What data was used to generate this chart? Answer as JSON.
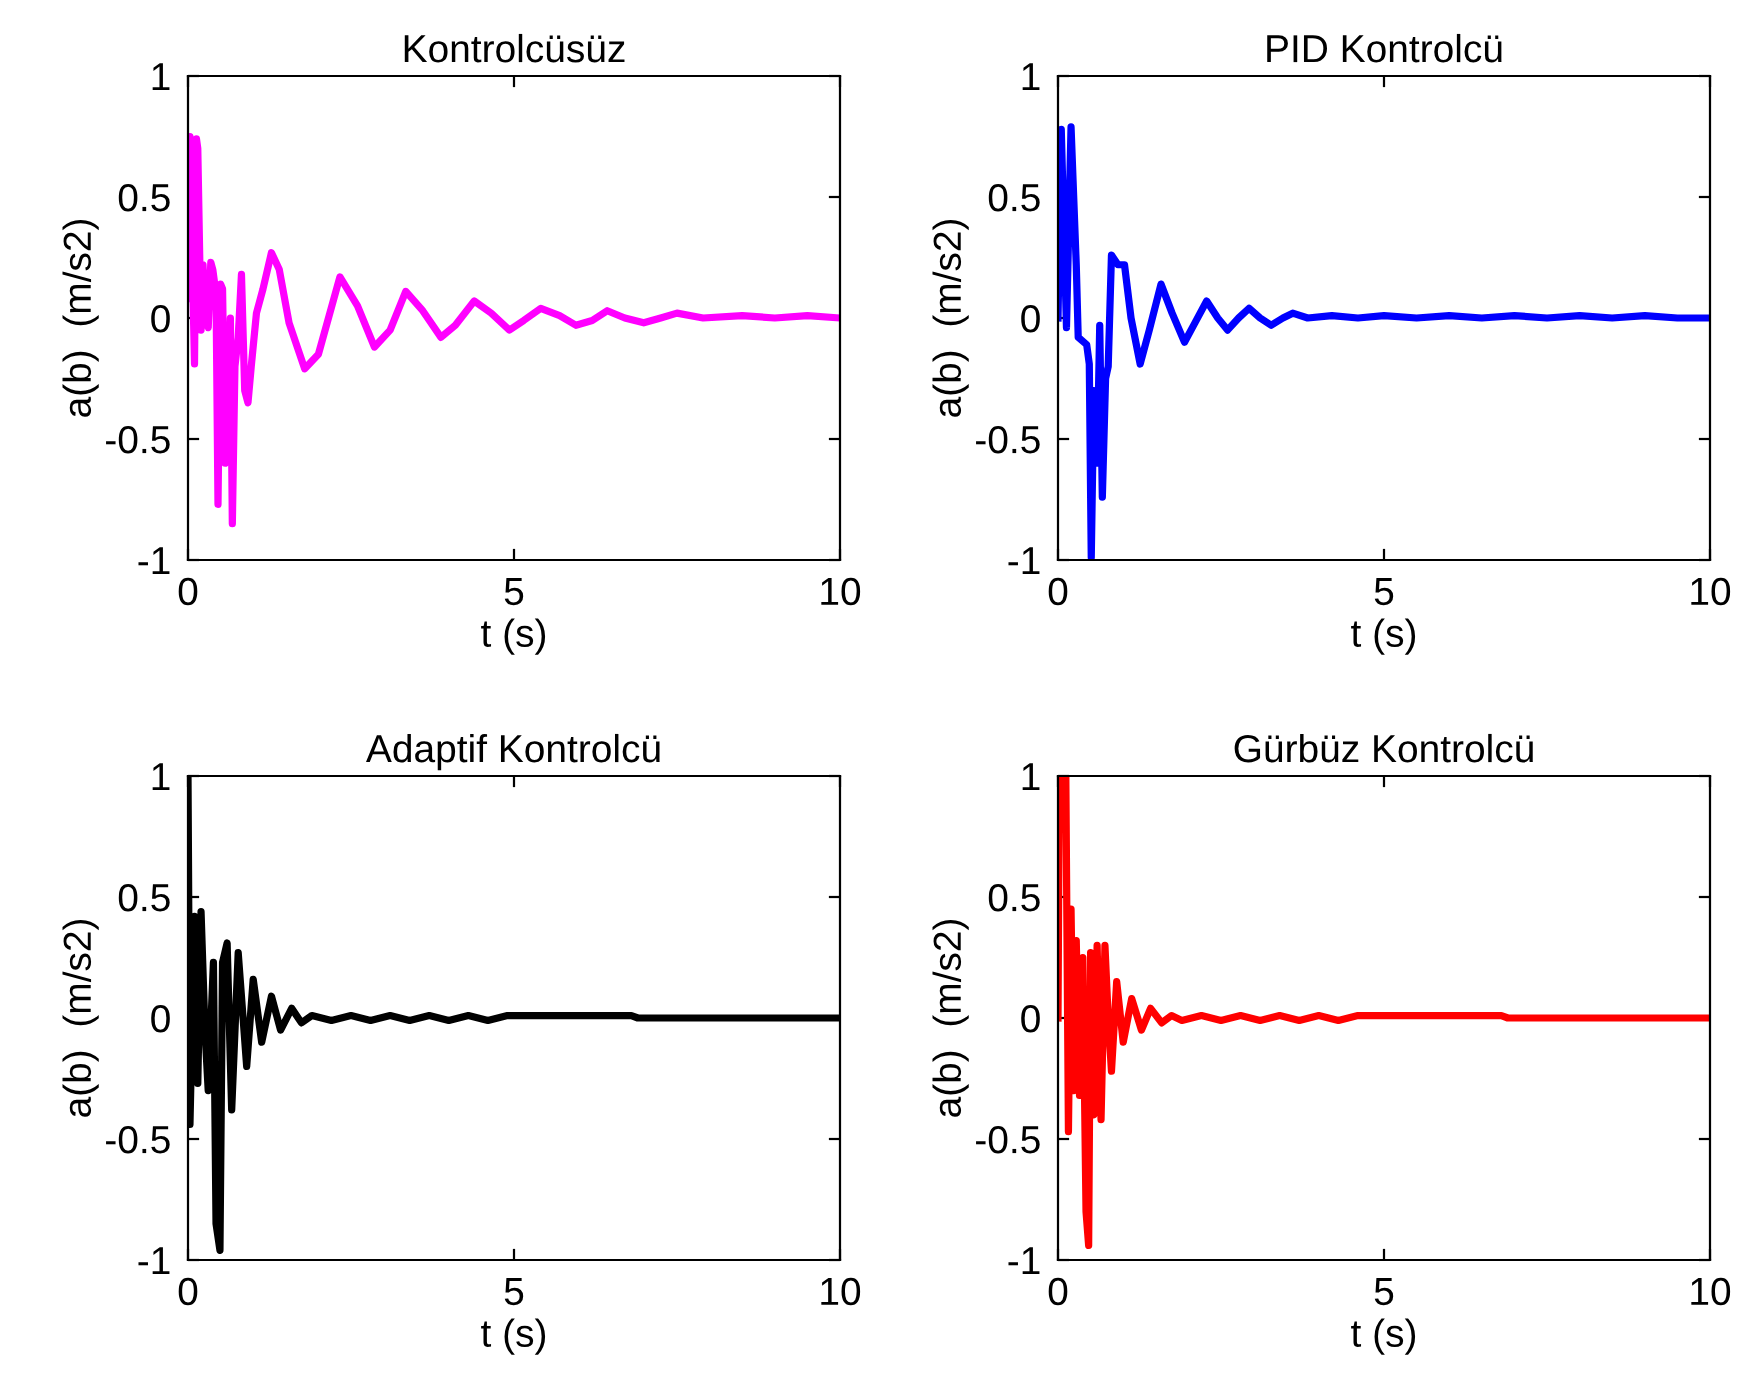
{
  "chart_data": [
    {
      "type": "line",
      "title": "Kontrolcüsüz",
      "xlabel": "t (s)",
      "ylabel": "a(b)  (m/s2)",
      "xlim": [
        0,
        10
      ],
      "xticks": [
        0,
        5,
        10
      ],
      "ylim": [
        -1,
        1
      ],
      "yticks": [
        -1,
        -0.5,
        0,
        0.5,
        1
      ],
      "grid": false,
      "legend": false,
      "marker": "none",
      "line_style": "solid",
      "series": [
        {
          "color": "#ff00ff",
          "x": [
            0,
            0.03,
            0.06,
            0.1,
            0.13,
            0.15,
            0.2,
            0.23,
            0.27,
            0.31,
            0.35,
            0.38,
            0.43,
            0.46,
            0.5,
            0.53,
            0.57,
            0.61,
            0.65,
            0.68,
            0.72,
            0.77,
            0.82,
            0.87,
            0.92,
            0.97,
            1.05,
            1.15,
            1.28,
            1.4,
            1.55,
            1.79,
            2.0,
            2.33,
            2.6,
            2.86,
            3.1,
            3.34,
            3.6,
            3.88,
            4.1,
            4.39,
            4.65,
            4.93,
            5.15,
            5.41,
            5.7,
            5.95,
            6.2,
            6.43,
            6.7,
            6.99,
            7.25,
            7.5,
            7.9,
            8.5,
            9.0,
            9.5,
            10
          ],
          "values": [
            0.08,
            0.75,
            0.3,
            -0.19,
            0.74,
            0.7,
            -0.05,
            0.22,
            0.0,
            -0.04,
            0.23,
            0.2,
            0.1,
            -0.77,
            0.14,
            0.12,
            -0.6,
            -0.4,
            0.0,
            -0.85,
            -0.2,
            -0.08,
            0.18,
            -0.3,
            -0.35,
            -0.2,
            0.02,
            0.12,
            0.27,
            0.2,
            -0.02,
            -0.21,
            -0.15,
            0.17,
            0.05,
            -0.12,
            -0.05,
            0.11,
            0.03,
            -0.08,
            -0.03,
            0.07,
            0.02,
            -0.05,
            -0.01,
            0.04,
            0.01,
            -0.03,
            -0.01,
            0.03,
            0.0,
            -0.02,
            0.0,
            0.02,
            0.0,
            0.01,
            0.0,
            0.01,
            0.0
          ]
        }
      ]
    },
    {
      "type": "line",
      "title": "PID Kontrolcü",
      "xlabel": "t (s)",
      "ylabel": "a(b)  (m/s2)",
      "xlim": [
        0,
        10
      ],
      "xticks": [
        0,
        5,
        10
      ],
      "ylim": [
        -1,
        1
      ],
      "yticks": [
        -1,
        -0.5,
        0,
        0.5,
        1
      ],
      "grid": false,
      "legend": false,
      "marker": "none",
      "line_style": "solid",
      "series": [
        {
          "color": "#0000ff",
          "x": [
            0,
            0.05,
            0.13,
            0.2,
            0.28,
            0.31,
            0.44,
            0.48,
            0.51,
            0.55,
            0.6,
            0.64,
            0.68,
            0.73,
            0.77,
            0.82,
            0.92,
            1.02,
            1.12,
            1.26,
            1.4,
            1.58,
            1.75,
            1.94,
            2.1,
            2.28,
            2.45,
            2.6,
            2.77,
            2.93,
            3.1,
            3.27,
            3.45,
            3.6,
            3.83,
            4.2,
            4.6,
            5.0,
            5.5,
            6.0,
            6.5,
            7.0,
            7.5,
            8.0,
            8.5,
            9.0,
            9.5,
            10
          ],
          "values": [
            0,
            0.78,
            -0.04,
            0.79,
            0.22,
            -0.08,
            -0.11,
            -0.19,
            -0.99,
            -0.3,
            -0.6,
            -0.03,
            -0.74,
            -0.25,
            -0.2,
            0.26,
            0.22,
            0.22,
            0.0,
            -0.19,
            -0.05,
            0.14,
            0.02,
            -0.1,
            -0.02,
            0.07,
            0.0,
            -0.05,
            0.0,
            0.04,
            0.0,
            -0.03,
            0.0,
            0.02,
            0.0,
            0.01,
            0.0,
            0.01,
            0.0,
            0.01,
            0.0,
            0.01,
            0.0,
            0.01,
            0.0,
            0.01,
            0.0,
            0.0
          ]
        }
      ]
    },
    {
      "type": "line",
      "title": "Adaptif Kontrolcü",
      "xlabel": "t (s)",
      "ylabel": "a(b)  (m/s2)",
      "xlim": [
        0,
        10
      ],
      "xticks": [
        0,
        5,
        10
      ],
      "ylim": [
        -1,
        1
      ],
      "yticks": [
        -1,
        -0.5,
        0,
        0.5,
        1
      ],
      "grid": false,
      "legend": false,
      "marker": "none",
      "line_style": "solid",
      "series": [
        {
          "color": "#000000",
          "x": [
            0,
            0.03,
            0.1,
            0.15,
            0.2,
            0.26,
            0.31,
            0.39,
            0.43,
            0.49,
            0.53,
            0.6,
            0.67,
            0.77,
            0.9,
            1.0,
            1.13,
            1.28,
            1.42,
            1.59,
            1.74,
            1.9,
            2.2,
            2.5,
            2.8,
            3.1,
            3.4,
            3.7,
            4.0,
            4.3,
            4.6,
            4.9,
            6.8,
            6.9,
            10
          ],
          "values": [
            1.0,
            -0.44,
            0.42,
            -0.27,
            0.44,
            -0.05,
            -0.3,
            0.23,
            -0.85,
            -0.96,
            0.23,
            0.31,
            -0.38,
            0.27,
            -0.2,
            0.16,
            -0.1,
            0.09,
            -0.05,
            0.04,
            -0.02,
            0.01,
            -0.01,
            0.01,
            -0.01,
            0.01,
            -0.01,
            0.01,
            -0.01,
            0.01,
            -0.01,
            0.01,
            0.01,
            0.0,
            0.0
          ]
        }
      ]
    },
    {
      "type": "line",
      "title": "Gürbüz Kontrolcü",
      "xlabel": "t (s)",
      "ylabel": "a(b)  (m/s2)",
      "xlim": [
        0,
        10
      ],
      "xticks": [
        0,
        5,
        10
      ],
      "ylim": [
        -1,
        1
      ],
      "yticks": [
        -1,
        -0.5,
        0,
        0.5,
        1
      ],
      "grid": false,
      "legend": false,
      "marker": "none",
      "line_style": "solid",
      "series": [
        {
          "color": "#ff0000",
          "x": [
            0,
            0.02,
            0.12,
            0.16,
            0.2,
            0.24,
            0.28,
            0.33,
            0.38,
            0.43,
            0.47,
            0.5,
            0.55,
            0.6,
            0.66,
            0.72,
            0.77,
            0.82,
            0.9,
            1.0,
            1.13,
            1.28,
            1.42,
            1.59,
            1.74,
            1.9,
            2.2,
            2.5,
            2.8,
            3.1,
            3.4,
            3.7,
            4.0,
            4.3,
            4.6,
            4.9,
            6.8,
            6.9,
            10
          ],
          "values": [
            0,
            1.0,
            1.0,
            -0.47,
            0.45,
            -0.3,
            0.32,
            -0.32,
            0.25,
            -0.8,
            -0.94,
            0.27,
            -0.4,
            0.3,
            -0.42,
            0.3,
            0.0,
            -0.22,
            0.15,
            -0.1,
            0.08,
            -0.05,
            0.04,
            -0.02,
            0.01,
            -0.01,
            0.01,
            -0.01,
            0.01,
            -0.01,
            0.01,
            -0.01,
            0.01,
            -0.01,
            0.01,
            0.01,
            0.01,
            0.0,
            0.0
          ]
        }
      ]
    }
  ]
}
